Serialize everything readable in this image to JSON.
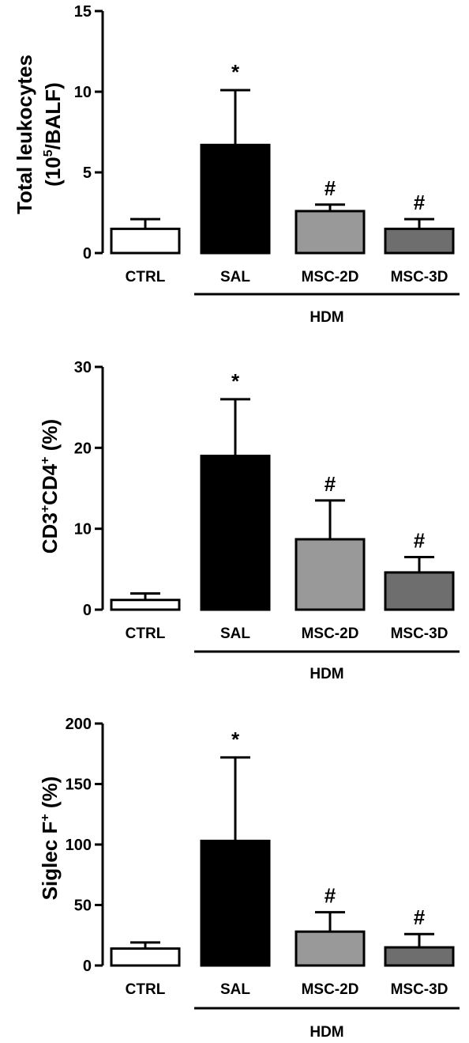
{
  "chart_data": [
    {
      "type": "bar",
      "categories": [
        "CTRL",
        "SAL",
        "MSC-2D",
        "MSC-3D"
      ],
      "values": [
        1.5,
        6.7,
        2.6,
        1.5
      ],
      "errors": [
        0.6,
        3.4,
        0.4,
        0.6
      ],
      "significance": [
        "",
        "*",
        "#",
        "#"
      ],
      "colors": [
        "#ffffff",
        "#000000",
        "#999999",
        "#6e6e6e"
      ],
      "ylim": [
        0,
        15
      ],
      "yticks": [
        "0",
        "5",
        "10",
        "15"
      ],
      "ylabel_line1": "Total leukocytes",
      "ylabel_line2_base": "(10",
      "ylabel_line2_sup": "5",
      "ylabel_line2_tail": "/BALF)",
      "group_label": "HDM"
    },
    {
      "type": "bar",
      "categories": [
        "CTRL",
        "SAL",
        "MSC-2D",
        "MSC-3D"
      ],
      "values": [
        1.2,
        19,
        8.7,
        4.6
      ],
      "errors": [
        0.8,
        7,
        4.8,
        1.9
      ],
      "significance": [
        "",
        "*",
        "#",
        "#"
      ],
      "colors": [
        "#ffffff",
        "#000000",
        "#999999",
        "#6e6e6e"
      ],
      "ylim": [
        0,
        30
      ],
      "yticks": [
        "0",
        "10",
        "20",
        "30"
      ],
      "ylabel_part1": "CD3",
      "ylabel_sup1": "+",
      "ylabel_part2": "CD4",
      "ylabel_sup2": "+",
      "ylabel_part3": " (%)",
      "group_label": "HDM"
    },
    {
      "type": "bar",
      "categories": [
        "CTRL",
        "SAL",
        "MSC-2D",
        "MSC-3D"
      ],
      "values": [
        14,
        103,
        28,
        15
      ],
      "errors": [
        5,
        69,
        16,
        11
      ],
      "significance": [
        "",
        "*",
        "#",
        "#"
      ],
      "colors": [
        "#ffffff",
        "#000000",
        "#999999",
        "#6e6e6e"
      ],
      "ylim": [
        0,
        200
      ],
      "yticks": [
        "0",
        "50",
        "100",
        "150",
        "200"
      ],
      "ylabel_part1": "Siglec F",
      "ylabel_sup1": "+",
      "ylabel_part2": " (%)",
      "group_label": "HDM"
    }
  ]
}
